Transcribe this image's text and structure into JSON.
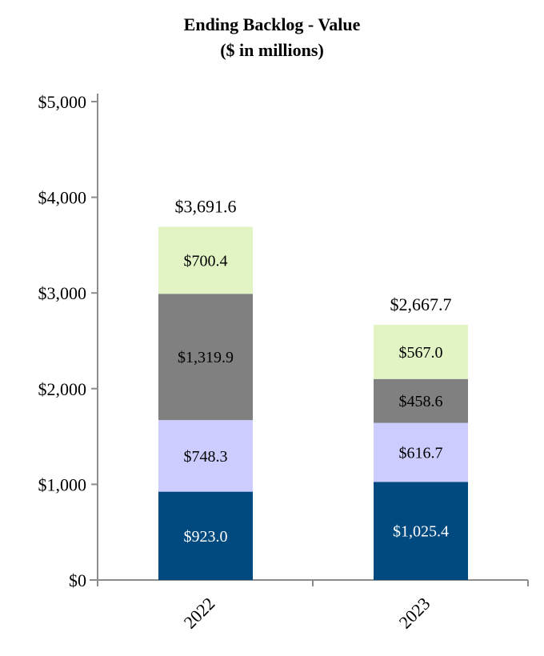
{
  "chart_data": {
    "type": "bar",
    "stacked": true,
    "title": "Ending Backlog - Value",
    "subtitle": "($ in millions)",
    "xlabel": "",
    "ylabel": "",
    "ylim": [
      0,
      5000
    ],
    "yticks": [
      0,
      1000,
      2000,
      3000,
      4000,
      5000
    ],
    "ytick_labels": [
      "$0",
      "$1,000",
      "$2,000",
      "$3,000",
      "$4,000",
      "$5,000"
    ],
    "categories": [
      "2022",
      "2023"
    ],
    "series": [
      {
        "name": "Segment 1",
        "color": "#004a7f",
        "text_color": "#ffffff",
        "values": [
          923.0,
          1025.4
        ],
        "labels": [
          "$923.0",
          "$1,025.4"
        ]
      },
      {
        "name": "Segment 2",
        "color": "#ccccff",
        "text_color": "#000000",
        "values": [
          748.3,
          616.7
        ],
        "labels": [
          "$748.3",
          "$616.7"
        ]
      },
      {
        "name": "Segment 3",
        "color": "#808080",
        "text_color": "#000000",
        "values": [
          1319.9,
          458.6
        ],
        "labels": [
          "$1,319.9",
          "$458.6"
        ]
      },
      {
        "name": "Segment 4",
        "color": "#e2f4c4",
        "text_color": "#000000",
        "values": [
          700.4,
          567.0
        ],
        "labels": [
          "$700.4",
          "$567.0"
        ]
      }
    ],
    "totals": [
      3691.6,
      2667.7
    ],
    "total_labels": [
      "$3,691.6",
      "$2,667.7"
    ],
    "grid": false,
    "legend": "none"
  }
}
